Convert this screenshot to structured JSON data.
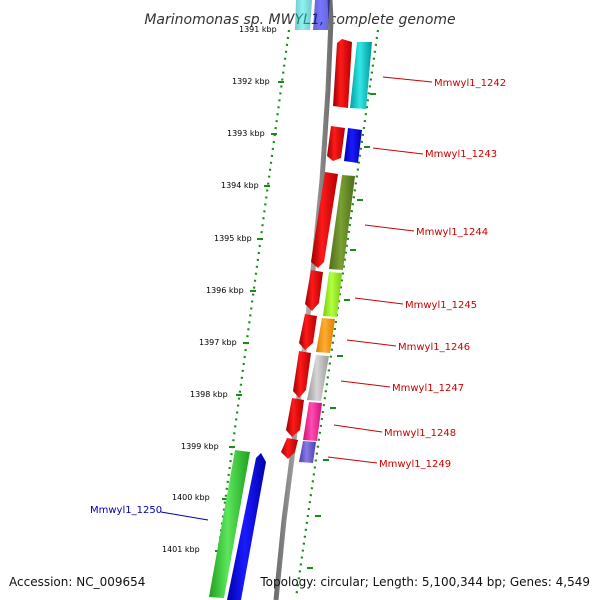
{
  "title": "Marinomonas sp. MWYL1, complete genome",
  "footer": {
    "accession": "Accession: NC_009654",
    "topology": "Topology: circular; Length: 5,100,344 bp; Genes: 4,549"
  },
  "scale": {
    "unit": "kbp",
    "labels": [
      "1391 kbp",
      "1392 kbp",
      "1393 kbp",
      "1394 kbp",
      "1395 kbp",
      "1396 kbp",
      "1397 kbp",
      "1398 kbp",
      "1399 kbp",
      "1400 kbp",
      "1401 kbp"
    ]
  },
  "genes": [
    {
      "id": "Mmwyl1_1242",
      "label": "Mmwyl1_1242",
      "color": "#cc0000"
    },
    {
      "id": "Mmwyl1_1243",
      "label": "Mmwyl1_1243",
      "color": "#cc0000"
    },
    {
      "id": "Mmwyl1_1244",
      "label": "Mmwyl1_1244",
      "color": "#cc0000"
    },
    {
      "id": "Mmwyl1_1245",
      "label": "Mmwyl1_1245",
      "color": "#cc0000"
    },
    {
      "id": "Mmwyl1_1246",
      "label": "Mmwyl1_1246",
      "color": "#cc0000"
    },
    {
      "id": "Mmwyl1_1247",
      "label": "Mmwyl1_1247",
      "color": "#cc0000"
    },
    {
      "id": "Mmwyl1_1248",
      "label": "Mmwyl1_1248",
      "color": "#cc0000"
    },
    {
      "id": "Mmwyl1_1249",
      "label": "Mmwyl1_1249",
      "color": "#cc0000"
    },
    {
      "id": "Mmwyl1_1250",
      "label": "Mmwyl1_1250",
      "color": "#0000aa"
    }
  ],
  "colors": {
    "strand_arrow": "#ee0000",
    "scale_dots": "#1a8a1a",
    "backbone": "#8c8c8c",
    "cog_cyan": "#00cccc",
    "cog_blue": "#0000ee",
    "cog_olive": "#6b8e23",
    "cog_lime": "#99ee22",
    "cog_orange": "#ff9900",
    "cog_gray": "#bbbbbb",
    "cog_pink": "#ff1493",
    "cog_slate": "#6a5acd",
    "cog_green": "#33cc33"
  }
}
